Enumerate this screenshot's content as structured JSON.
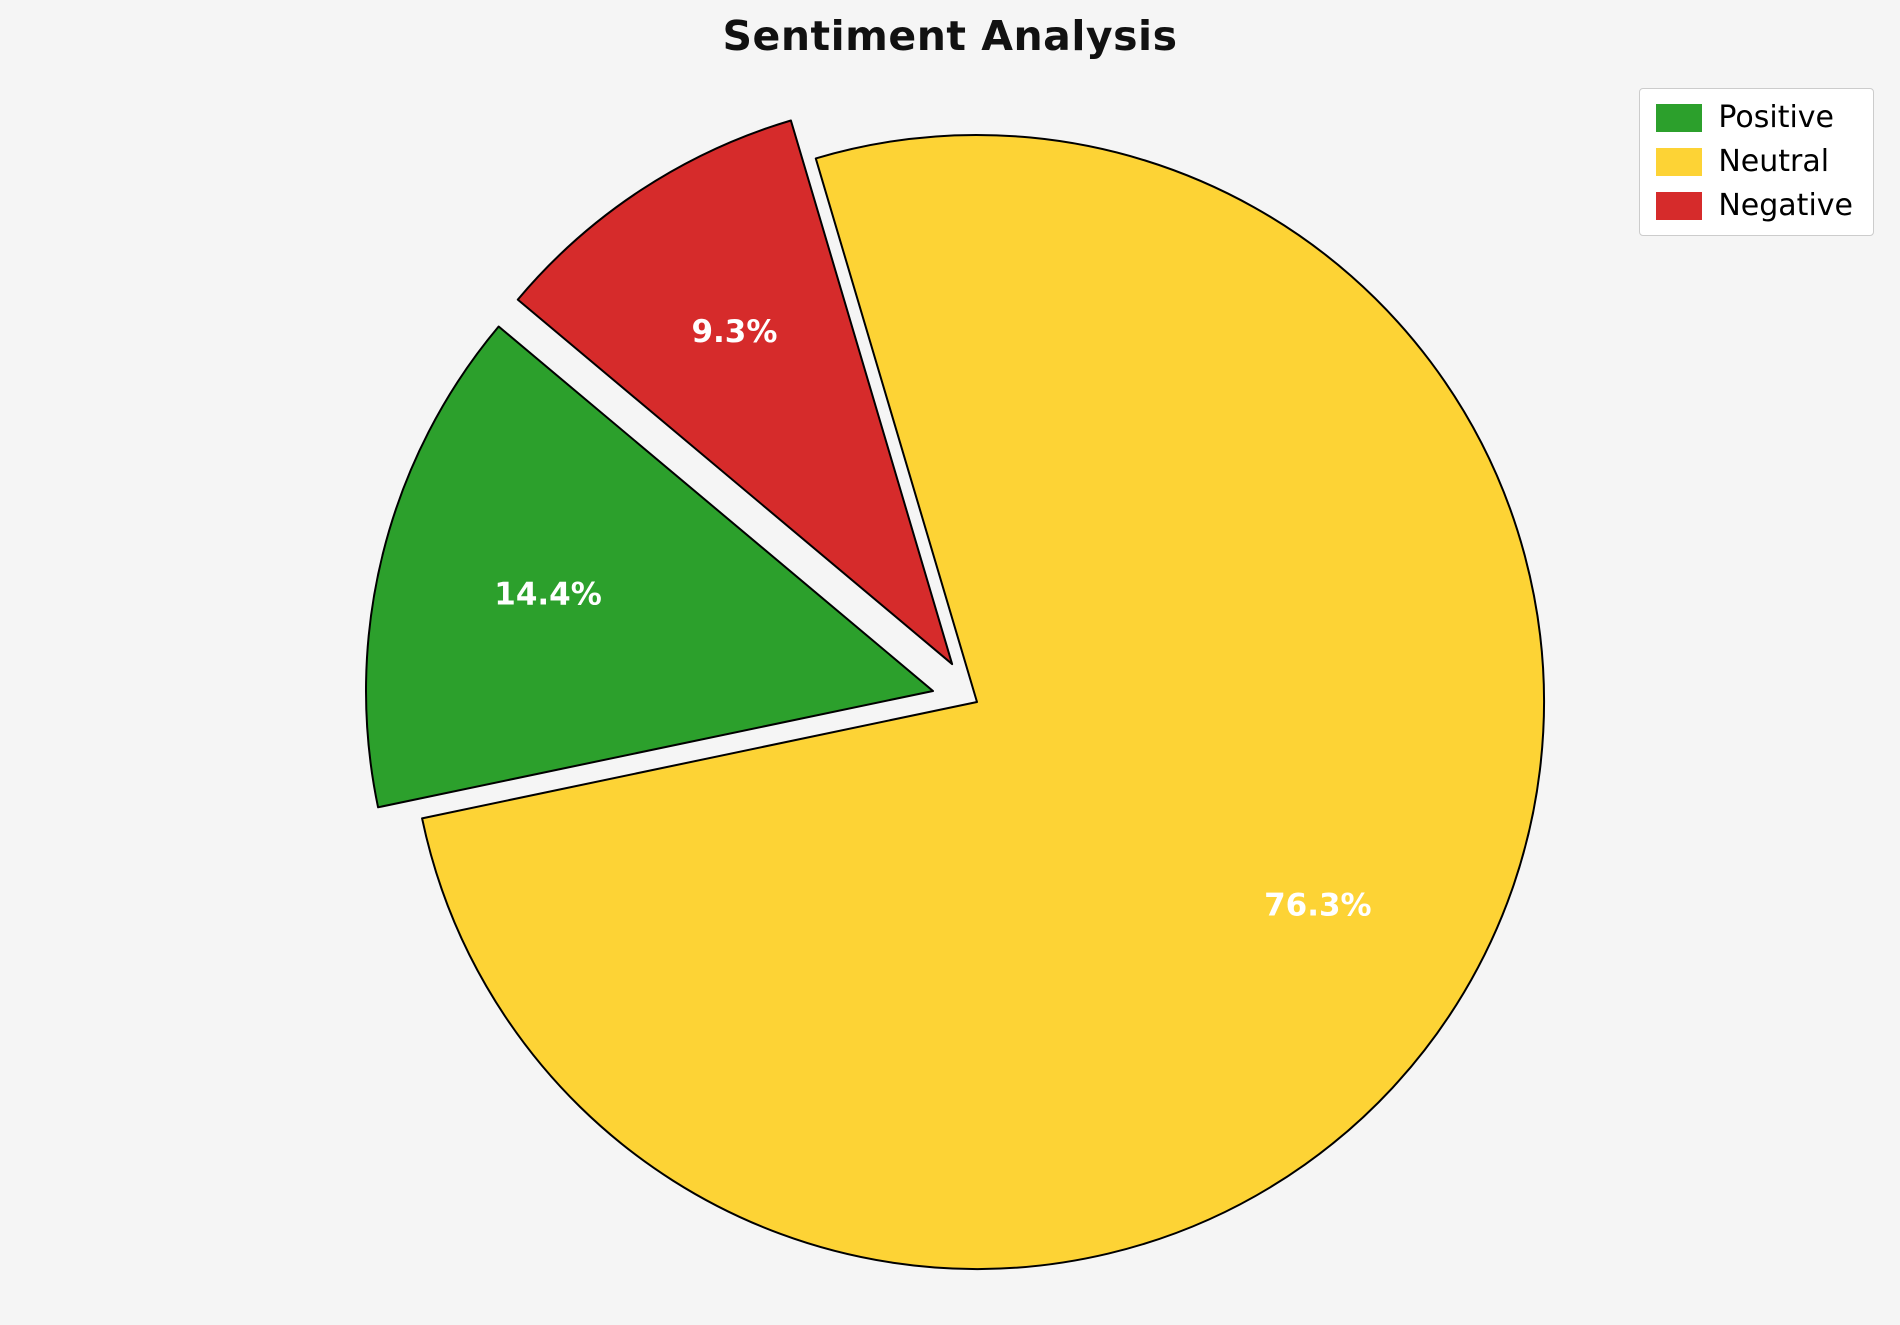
{
  "title": "Sentiment Analysis",
  "background_color": "#f5f5f5",
  "legend": {
    "position": "upper right",
    "items": [
      {
        "label": "Positive",
        "color": "#2ca02c"
      },
      {
        "label": "Neutral",
        "color": "#fdd335"
      },
      {
        "label": "Negative",
        "color": "#d62b2b"
      }
    ]
  },
  "chart_data": {
    "type": "pie",
    "title": "Sentiment Analysis",
    "labels": [
      "Positive",
      "Neutral",
      "Negative"
    ],
    "values": [
      14.4,
      76.3,
      9.3
    ],
    "pct_labels": [
      "14.4%",
      "76.3%",
      "9.3%"
    ],
    "colors": [
      "#2ca02c",
      "#fdd335",
      "#d62b2b"
    ],
    "explode": [
      0.08,
      0,
      0.08
    ],
    "start_angle": 140,
    "direction": "counterclockwise",
    "edge_color": "#000000",
    "edge_width": 2,
    "pct_label_color": "#ffffff",
    "pct_distance": 0.7,
    "legend_position": "upper right",
    "grid": false
  }
}
